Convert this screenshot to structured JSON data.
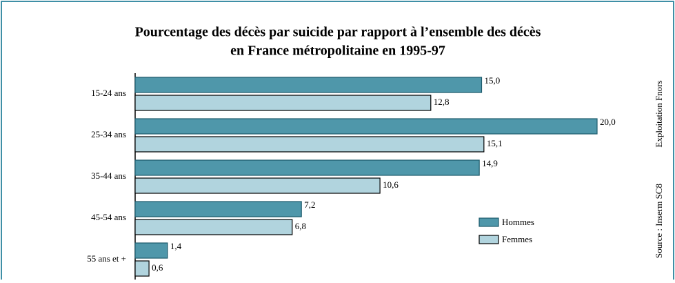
{
  "chart_data": {
    "type": "bar",
    "orientation": "horizontal",
    "title": [
      "Pourcentage des décès par suicide par rapport à l’ensemble des décès",
      "en France métropolitaine en 1995-97"
    ],
    "categories": [
      "15-24 ans",
      "25-34 ans",
      "35-44 ans",
      "45-54 ans",
      "55 ans et +"
    ],
    "series": [
      {
        "name": "Hommes",
        "color": "#4f97aa",
        "values": [
          15.0,
          20.0,
          14.9,
          7.2,
          1.4
        ],
        "value_labels": [
          "15,0",
          "20,0",
          "14,9",
          "7,2",
          "1,4"
        ]
      },
      {
        "name": "Femmes",
        "color": "#b1d4de",
        "values": [
          12.8,
          15.1,
          10.6,
          6.8,
          0.6
        ],
        "value_labels": [
          "12,8",
          "15,1",
          "10,6",
          "6,8",
          "0,6"
        ]
      }
    ],
    "annotations": [
      "Exploitation Fnors",
      "Source : Inserm SC8"
    ]
  }
}
